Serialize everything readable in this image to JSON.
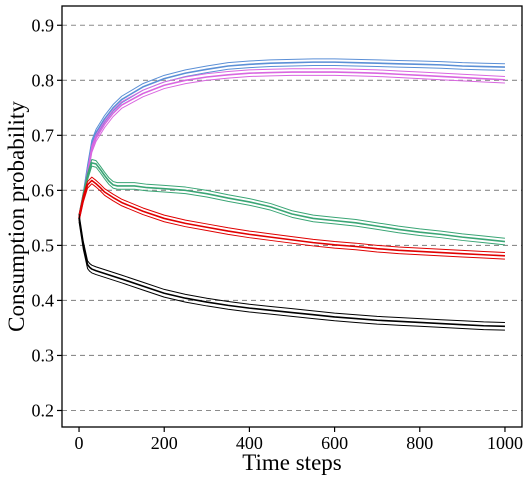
{
  "chart_data": {
    "type": "line",
    "title": "",
    "xlabel": "Time steps",
    "ylabel": "Consumption probability",
    "xlim": [
      -40,
      1040
    ],
    "ylim": [
      0.17,
      0.935
    ],
    "x_ticks": [
      0,
      200,
      400,
      600,
      800,
      1000
    ],
    "x_tick_labels": [
      "0",
      "200",
      "400",
      "600",
      "800",
      "1000"
    ],
    "y_ticks": [
      0.2,
      0.3,
      0.4,
      0.5,
      0.6,
      0.7,
      0.8,
      0.9
    ],
    "y_tick_labels": [
      "0.2",
      "0.3",
      "0.4",
      "0.5",
      "0.6",
      "0.7",
      "0.8",
      "0.9"
    ],
    "grid": "horizontal dashed",
    "legend": "none",
    "series": [
      {
        "color": "#5b8fd6",
        "band": 0.006,
        "x": [
          0,
          10,
          20,
          30,
          40,
          60,
          80,
          100,
          150,
          200,
          250,
          300,
          350,
          400,
          450,
          500,
          550,
          600,
          650,
          700,
          750,
          800,
          850,
          900,
          950,
          1000
        ],
        "y": [
          0.55,
          0.59,
          0.64,
          0.685,
          0.705,
          0.73,
          0.75,
          0.765,
          0.788,
          0.803,
          0.813,
          0.82,
          0.826,
          0.829,
          0.831,
          0.832,
          0.833,
          0.833,
          0.832,
          0.831,
          0.83,
          0.829,
          0.828,
          0.826,
          0.825,
          0.824
        ]
      },
      {
        "color": "#d966e0",
        "band": 0.006,
        "x": [
          0,
          10,
          20,
          30,
          40,
          60,
          80,
          100,
          150,
          200,
          250,
          300,
          350,
          400,
          450,
          500,
          550,
          600,
          650,
          700,
          750,
          800,
          850,
          900,
          950,
          1000
        ],
        "y": [
          0.55,
          0.585,
          0.63,
          0.675,
          0.695,
          0.72,
          0.74,
          0.755,
          0.776,
          0.791,
          0.8,
          0.806,
          0.81,
          0.813,
          0.814,
          0.815,
          0.815,
          0.815,
          0.814,
          0.813,
          0.811,
          0.809,
          0.807,
          0.805,
          0.803,
          0.801
        ]
      },
      {
        "color": "#3aa575",
        "band": 0.006,
        "x": [
          0,
          10,
          20,
          30,
          40,
          50,
          60,
          70,
          80,
          90,
          100,
          130,
          160,
          200,
          250,
          300,
          350,
          400,
          450,
          500,
          550,
          600,
          650,
          700,
          750,
          800,
          850,
          900,
          950,
          1000
        ],
        "y": [
          0.55,
          0.59,
          0.625,
          0.65,
          0.648,
          0.638,
          0.627,
          0.617,
          0.61,
          0.608,
          0.608,
          0.608,
          0.605,
          0.603,
          0.6,
          0.594,
          0.586,
          0.579,
          0.57,
          0.557,
          0.549,
          0.545,
          0.541,
          0.535,
          0.529,
          0.524,
          0.52,
          0.515,
          0.511,
          0.507
        ]
      },
      {
        "color": "#e00000",
        "band": 0.006,
        "x": [
          0,
          10,
          20,
          30,
          40,
          50,
          60,
          80,
          100,
          150,
          200,
          250,
          300,
          350,
          400,
          450,
          500,
          550,
          600,
          650,
          700,
          750,
          800,
          850,
          900,
          950,
          1000
        ],
        "y": [
          0.55,
          0.585,
          0.61,
          0.618,
          0.612,
          0.605,
          0.597,
          0.587,
          0.578,
          0.562,
          0.549,
          0.54,
          0.533,
          0.526,
          0.52,
          0.515,
          0.51,
          0.505,
          0.501,
          0.498,
          0.494,
          0.491,
          0.489,
          0.487,
          0.485,
          0.483,
          0.481
        ]
      },
      {
        "color": "#000000",
        "band": 0.007,
        "x": [
          0,
          10,
          20,
          25,
          30,
          40,
          60,
          80,
          100,
          150,
          200,
          250,
          300,
          350,
          400,
          450,
          500,
          550,
          600,
          650,
          700,
          750,
          800,
          850,
          900,
          950,
          1000
        ],
        "y": [
          0.55,
          0.5,
          0.465,
          0.46,
          0.457,
          0.454,
          0.449,
          0.444,
          0.439,
          0.426,
          0.413,
          0.404,
          0.397,
          0.391,
          0.386,
          0.382,
          0.378,
          0.374,
          0.37,
          0.367,
          0.364,
          0.362,
          0.36,
          0.358,
          0.356,
          0.354,
          0.353
        ]
      }
    ]
  }
}
